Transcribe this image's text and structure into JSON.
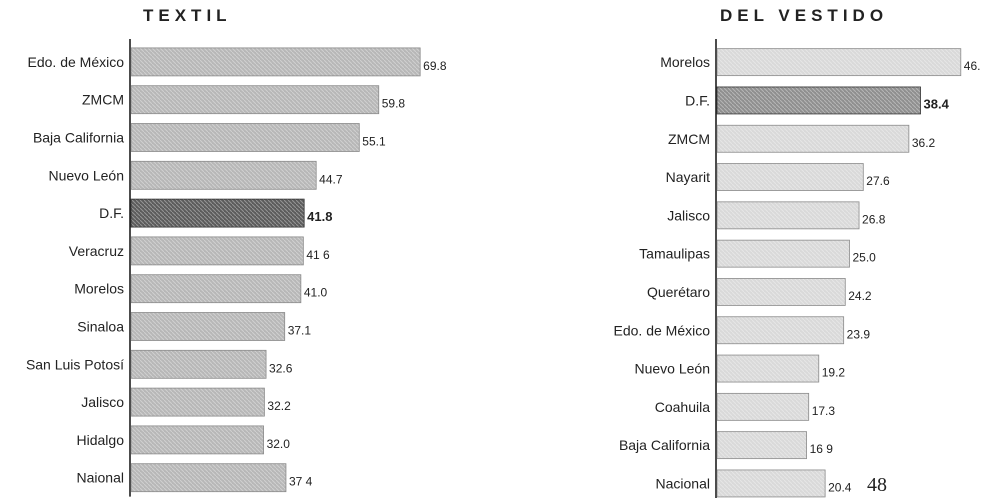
{
  "chart_data": [
    {
      "type": "bar",
      "orientation": "horizontal",
      "title": "TEXTIL",
      "categories": [
        "Edo. de México",
        "ZMCM",
        "Baja California",
        "Nuevo León",
        "D.F.",
        "Veracruz",
        "Morelos",
        "Sinaloa",
        "San Luis Potosí",
        "Jalisco",
        "Hidalgo",
        "Naional"
      ],
      "values": [
        69.8,
        59.8,
        55.1,
        44.7,
        41.8,
        41.6,
        41.0,
        37.1,
        32.6,
        32.2,
        32.0,
        37.4
      ],
      "value_labels": [
        "69.8",
        "59.8",
        "55.1",
        "44.7",
        "41.8",
        "41 6",
        "41.0",
        "37.1",
        "32.6",
        "32.2",
        "32.0",
        "37 4"
      ],
      "highlight": "D.F.",
      "xlim": [
        0,
        70
      ],
      "grid": false,
      "colors": {
        "bar": "#b7b7b7",
        "highlight": "#5c5c5c",
        "axis": "#111111"
      }
    },
    {
      "type": "bar",
      "orientation": "horizontal",
      "title": "DEL VESTIDO",
      "categories": [
        "Morelos",
        "D.F.",
        "ZMCM",
        "Nayarit",
        "Jalisco",
        "Tamaulipas",
        "Querétaro",
        "Edo. de México",
        "Nuevo León",
        "Coahuila",
        "Baja California",
        "Nacional"
      ],
      "values": [
        46.0,
        38.4,
        36.2,
        27.6,
        26.8,
        25.0,
        24.2,
        23.9,
        19.2,
        17.3,
        16.9,
        20.4
      ],
      "value_labels": [
        "46.",
        "38.4",
        "36.2",
        "27.6",
        "26.8",
        "25.0",
        "24.2",
        "23.9",
        "19.2",
        "17.3",
        "16 9",
        "20.4"
      ],
      "highlight": "D.F.",
      "xlim": [
        0,
        50
      ],
      "grid": false,
      "colors": {
        "bar": "#d9d9d9",
        "highlight": "#8f8f8f",
        "axis": "#111111"
      }
    }
  ],
  "page_number": "48"
}
